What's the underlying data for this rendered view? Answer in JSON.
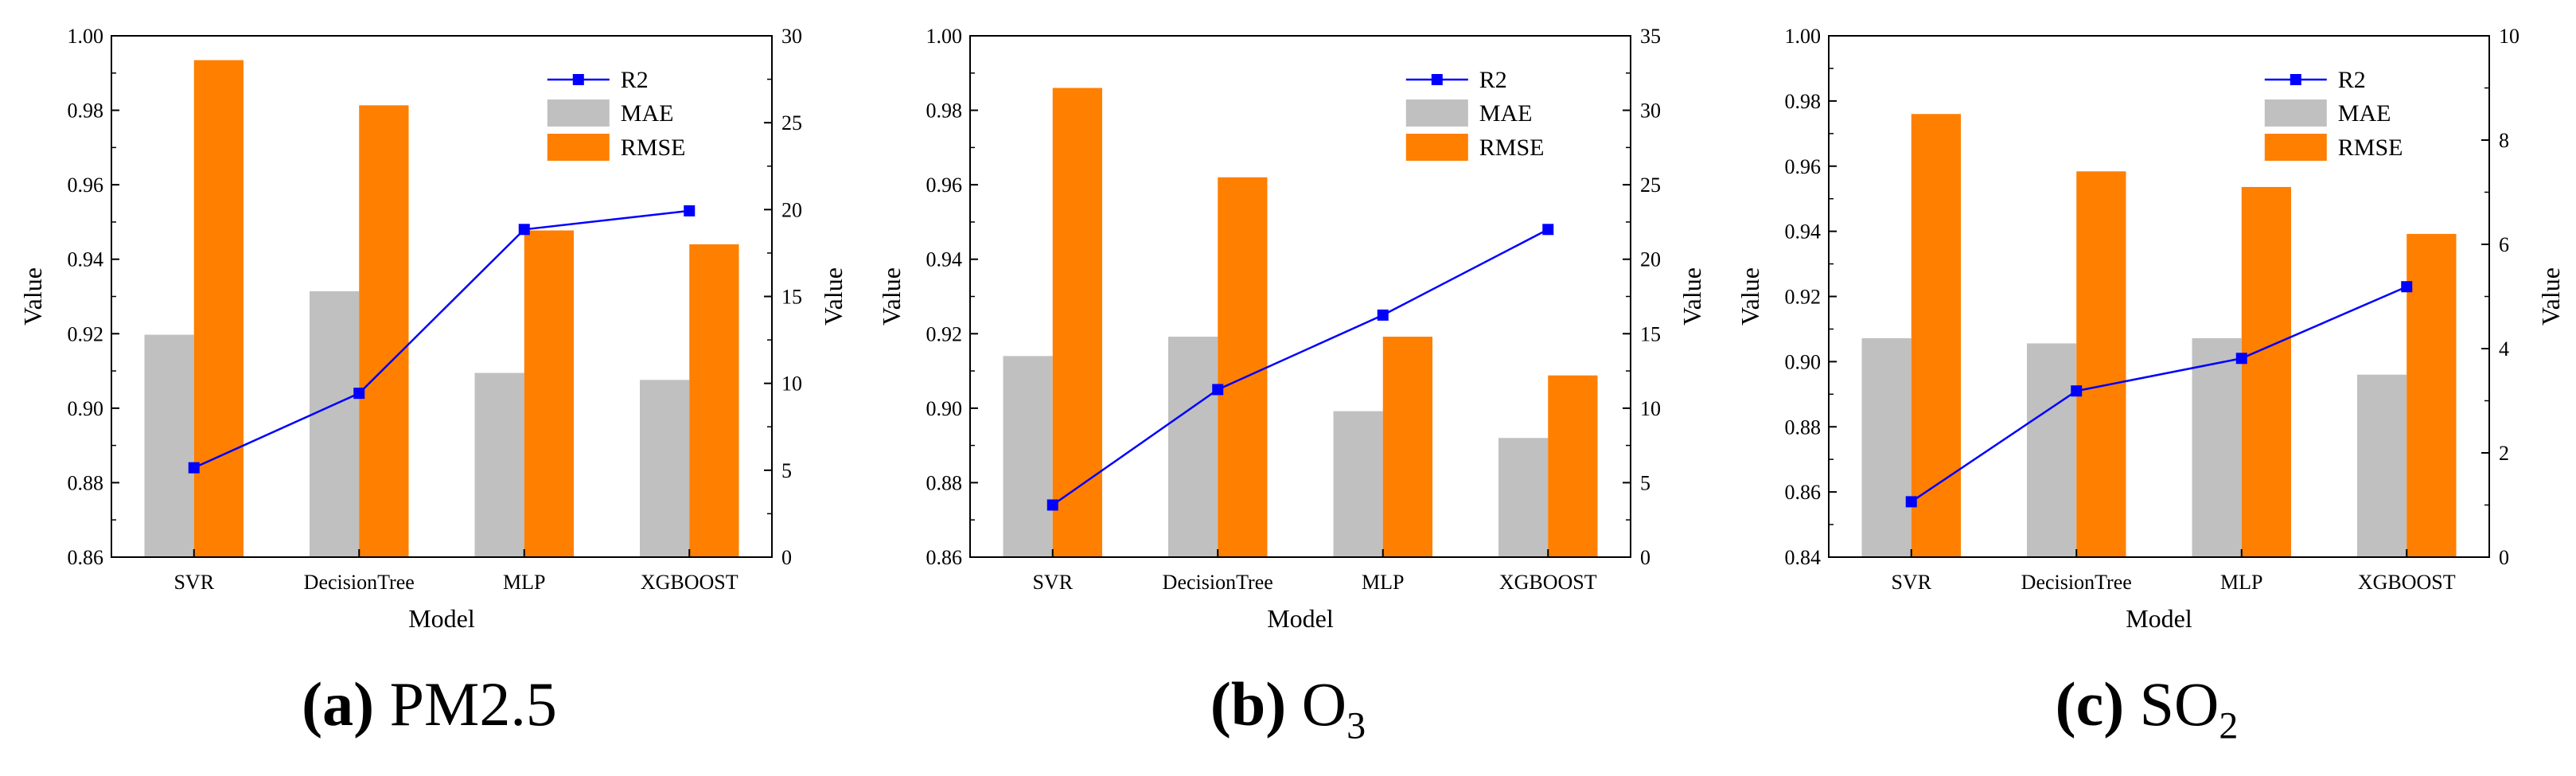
{
  "colors": {
    "r2": "#0000ff",
    "mae": "#c0c0c0",
    "rmse": "#ff7f00"
  },
  "chart_data": [
    {
      "type": "bar",
      "id": "a",
      "caption_label": "(a)",
      "caption_text": "PM2.5",
      "caption_sub": "",
      "categories": [
        "SVR",
        "DecisionTree",
        "MLP",
        "XGBOOST"
      ],
      "xlabel": "Model",
      "ylabel": "Value",
      "y2label": "Value",
      "ylim": [
        0.86,
        1.0
      ],
      "yticks": [
        "0.86",
        "0.88",
        "0.90",
        "0.92",
        "0.94",
        "0.96",
        "0.98",
        "1.00"
      ],
      "y2lim": [
        0,
        30
      ],
      "y2ticks": [
        "0",
        "5",
        "10",
        "15",
        "20",
        "25",
        "30"
      ],
      "legend": [
        "R2",
        "MAE",
        "RMSE"
      ],
      "series": [
        {
          "name": "R2",
          "axis": "left",
          "kind": "line",
          "values": [
            0.884,
            0.904,
            0.948,
            0.953
          ]
        },
        {
          "name": "MAE",
          "axis": "right",
          "kind": "bar",
          "values": [
            12.8,
            15.3,
            10.6,
            10.2
          ]
        },
        {
          "name": "RMSE",
          "axis": "right",
          "kind": "bar",
          "values": [
            28.6,
            26.0,
            18.8,
            18.0
          ]
        }
      ]
    },
    {
      "type": "bar",
      "id": "b",
      "caption_label": "(b)",
      "caption_text": "O",
      "caption_sub": "3",
      "categories": [
        "SVR",
        "DecisionTree",
        "MLP",
        "XGBOOST"
      ],
      "xlabel": "Model",
      "ylabel": "Value",
      "y2label": "Value",
      "ylim": [
        0.86,
        1.0
      ],
      "yticks": [
        "0.86",
        "0.88",
        "0.90",
        "0.92",
        "0.94",
        "0.96",
        "0.98",
        "1.00"
      ],
      "y2lim": [
        0,
        35
      ],
      "y2ticks": [
        "0",
        "5",
        "10",
        "15",
        "20",
        "25",
        "30",
        "35"
      ],
      "legend": [
        "R2",
        "MAE",
        "RMSE"
      ],
      "series": [
        {
          "name": "R2",
          "axis": "left",
          "kind": "line",
          "values": [
            0.874,
            0.905,
            0.925,
            0.948
          ]
        },
        {
          "name": "MAE",
          "axis": "right",
          "kind": "bar",
          "values": [
            13.5,
            14.8,
            9.8,
            8.0
          ]
        },
        {
          "name": "RMSE",
          "axis": "right",
          "kind": "bar",
          "values": [
            31.5,
            25.5,
            14.8,
            12.2
          ]
        }
      ]
    },
    {
      "type": "bar",
      "id": "c",
      "caption_label": "(c)",
      "caption_text": "SO",
      "caption_sub": "2",
      "categories": [
        "SVR",
        "DecisionTree",
        "MLP",
        "XGBOOST"
      ],
      "xlabel": "Model",
      "ylabel": "Value",
      "y2label": "Value",
      "ylim": [
        0.84,
        1.0
      ],
      "yticks": [
        "0.84",
        "0.86",
        "0.88",
        "0.90",
        "0.92",
        "0.94",
        "0.96",
        "0.98",
        "1.00"
      ],
      "y2lim": [
        0,
        10
      ],
      "y2ticks": [
        "0",
        "2",
        "4",
        "6",
        "8",
        "10"
      ],
      "legend": [
        "R2",
        "MAE",
        "RMSE"
      ],
      "series": [
        {
          "name": "R2",
          "axis": "left",
          "kind": "line",
          "values": [
            0.857,
            0.891,
            0.901,
            0.923
          ]
        },
        {
          "name": "MAE",
          "axis": "right",
          "kind": "bar",
          "values": [
            4.2,
            4.1,
            4.2,
            3.5
          ]
        },
        {
          "name": "RMSE",
          "axis": "right",
          "kind": "bar",
          "values": [
            8.5,
            7.4,
            7.1,
            6.2
          ]
        }
      ]
    }
  ]
}
